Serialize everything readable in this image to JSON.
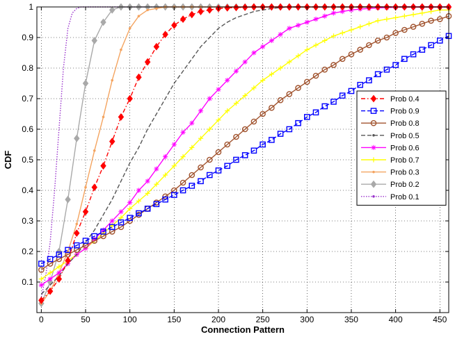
{
  "chart_data": {
    "type": "line",
    "xlabel": "Connection Pattern",
    "ylabel": "CDF",
    "xlim": [
      -5,
      460
    ],
    "ylim": [
      0,
      1
    ],
    "x_ticks": [
      0,
      50,
      100,
      150,
      200,
      250,
      300,
      350,
      400,
      450
    ],
    "y_ticks": [
      0.1,
      0.2,
      0.3,
      0.4,
      0.5,
      0.6,
      0.7,
      0.8,
      0.9,
      1
    ],
    "grid": "dotted",
    "legend_position": "right",
    "series": [
      {
        "name": "Prob 0.4",
        "color": "#ff0000",
        "dash": "dashdot",
        "marker": "diamond",
        "marker_fill": "#ff0000",
        "mark_step": 1,
        "x": [
          0,
          10,
          20,
          30,
          40,
          50,
          60,
          70,
          80,
          90,
          100,
          110,
          120,
          130,
          140,
          150,
          160,
          170,
          180,
          190,
          200,
          210,
          220,
          230,
          240,
          250,
          260,
          270,
          280,
          290,
          300,
          310,
          320,
          330,
          340,
          350,
          360,
          370,
          380,
          390,
          400,
          410,
          420,
          430,
          440,
          450,
          460
        ],
        "y": [
          0.04,
          0.07,
          0.11,
          0.17,
          0.26,
          0.33,
          0.41,
          0.48,
          0.56,
          0.64,
          0.7,
          0.77,
          0.82,
          0.87,
          0.91,
          0.94,
          0.96,
          0.975,
          0.985,
          0.99,
          0.995,
          0.997,
          0.998,
          0.999,
          1,
          1,
          1,
          1,
          1,
          1,
          1,
          1,
          1,
          1,
          1,
          1,
          1,
          1,
          1,
          1,
          1,
          1,
          1,
          1,
          1,
          1,
          1
        ]
      },
      {
        "name": "Prob 0.9",
        "color": "#0000ff",
        "dash": "dash",
        "marker": "square",
        "marker_fill": "none",
        "mark_step": 1,
        "x": [
          0,
          10,
          20,
          30,
          40,
          50,
          60,
          70,
          80,
          90,
          100,
          110,
          120,
          130,
          140,
          150,
          160,
          170,
          180,
          190,
          200,
          210,
          220,
          230,
          240,
          250,
          260,
          270,
          280,
          290,
          300,
          310,
          320,
          330,
          340,
          350,
          360,
          370,
          380,
          390,
          400,
          410,
          420,
          430,
          440,
          450,
          460
        ],
        "y": [
          0.16,
          0.175,
          0.19,
          0.205,
          0.22,
          0.235,
          0.25,
          0.265,
          0.28,
          0.295,
          0.31,
          0.325,
          0.34,
          0.355,
          0.37,
          0.385,
          0.4,
          0.415,
          0.43,
          0.45,
          0.465,
          0.48,
          0.5,
          0.515,
          0.53,
          0.55,
          0.565,
          0.585,
          0.6,
          0.62,
          0.64,
          0.655,
          0.675,
          0.69,
          0.71,
          0.725,
          0.745,
          0.76,
          0.78,
          0.795,
          0.81,
          0.83,
          0.845,
          0.86,
          0.875,
          0.89,
          0.905
        ]
      },
      {
        "name": "Prob 0.8",
        "color": "#a0522d",
        "dash": "solid",
        "marker": "circle",
        "marker_fill": "none",
        "mark_step": 1,
        "x": [
          0,
          10,
          20,
          30,
          40,
          50,
          60,
          70,
          80,
          90,
          100,
          110,
          120,
          130,
          140,
          150,
          160,
          170,
          180,
          190,
          200,
          210,
          220,
          230,
          240,
          250,
          260,
          270,
          280,
          290,
          300,
          310,
          320,
          330,
          340,
          350,
          360,
          370,
          380,
          390,
          400,
          410,
          420,
          430,
          440,
          450,
          460
        ],
        "y": [
          0.14,
          0.16,
          0.175,
          0.19,
          0.205,
          0.22,
          0.235,
          0.25,
          0.265,
          0.28,
          0.3,
          0.32,
          0.34,
          0.36,
          0.38,
          0.4,
          0.425,
          0.45,
          0.475,
          0.5,
          0.525,
          0.55,
          0.575,
          0.6,
          0.625,
          0.65,
          0.67,
          0.695,
          0.715,
          0.735,
          0.755,
          0.775,
          0.795,
          0.81,
          0.83,
          0.845,
          0.86,
          0.875,
          0.89,
          0.9,
          0.915,
          0.925,
          0.935,
          0.945,
          0.955,
          0.96,
          0.97
        ]
      },
      {
        "name": "Prob 0.5",
        "color": "#555555",
        "dash": "dash",
        "marker": "point",
        "marker_fill": "#555555",
        "mark_step": 0,
        "x": [
          0,
          10,
          20,
          30,
          40,
          50,
          60,
          70,
          80,
          90,
          100,
          110,
          120,
          130,
          140,
          150,
          160,
          170,
          180,
          190,
          200,
          210,
          220,
          230,
          240,
          250,
          260,
          270,
          280,
          290,
          300,
          310,
          320,
          330,
          340,
          350,
          360,
          370,
          380,
          390,
          400,
          410,
          420,
          430,
          440,
          450,
          460
        ],
        "y": [
          0.06,
          0.09,
          0.12,
          0.16,
          0.19,
          0.23,
          0.27,
          0.32,
          0.37,
          0.43,
          0.49,
          0.54,
          0.6,
          0.65,
          0.7,
          0.75,
          0.79,
          0.83,
          0.87,
          0.9,
          0.93,
          0.95,
          0.965,
          0.975,
          0.985,
          0.99,
          0.995,
          0.998,
          1,
          1,
          1,
          1,
          1,
          1,
          1,
          1,
          1,
          1,
          1,
          1,
          1,
          1,
          1,
          1,
          1,
          1,
          1
        ]
      },
      {
        "name": "Prob 0.6",
        "color": "#ff00ff",
        "dash": "solid",
        "marker": "star",
        "marker_fill": "#ff00ff",
        "mark_step": 1,
        "x": [
          0,
          10,
          20,
          30,
          40,
          50,
          60,
          70,
          80,
          90,
          100,
          110,
          120,
          130,
          140,
          150,
          160,
          170,
          180,
          190,
          200,
          210,
          220,
          230,
          240,
          250,
          260,
          270,
          280,
          290,
          300,
          310,
          320,
          330,
          340,
          350,
          360,
          370,
          380,
          390,
          400,
          410,
          420,
          430,
          440,
          450,
          460
        ],
        "y": [
          0.09,
          0.11,
          0.13,
          0.16,
          0.19,
          0.21,
          0.24,
          0.27,
          0.3,
          0.33,
          0.36,
          0.4,
          0.43,
          0.47,
          0.51,
          0.55,
          0.59,
          0.62,
          0.66,
          0.7,
          0.73,
          0.76,
          0.79,
          0.82,
          0.85,
          0.87,
          0.89,
          0.91,
          0.93,
          0.94,
          0.95,
          0.96,
          0.97,
          0.98,
          0.985,
          0.99,
          0.993,
          0.995,
          0.997,
          0.998,
          0.999,
          1,
          1,
          1,
          1,
          1,
          1
        ]
      },
      {
        "name": "Prob 0.7",
        "color": "#ffff00",
        "dash": "solid",
        "marker": "plus",
        "marker_fill": "#ffff00",
        "mark_step": 1,
        "x": [
          0,
          10,
          20,
          30,
          40,
          50,
          60,
          70,
          80,
          90,
          100,
          110,
          120,
          130,
          140,
          150,
          160,
          170,
          180,
          190,
          200,
          210,
          220,
          230,
          240,
          250,
          260,
          270,
          280,
          290,
          300,
          310,
          320,
          330,
          340,
          350,
          360,
          370,
          380,
          390,
          400,
          410,
          420,
          430,
          440,
          450,
          460
        ],
        "y": [
          0.11,
          0.13,
          0.15,
          0.17,
          0.19,
          0.21,
          0.235,
          0.26,
          0.285,
          0.31,
          0.34,
          0.365,
          0.39,
          0.42,
          0.45,
          0.48,
          0.51,
          0.54,
          0.57,
          0.6,
          0.63,
          0.66,
          0.685,
          0.71,
          0.735,
          0.76,
          0.78,
          0.8,
          0.82,
          0.84,
          0.86,
          0.875,
          0.89,
          0.905,
          0.915,
          0.925,
          0.935,
          0.945,
          0.955,
          0.96,
          0.965,
          0.97,
          0.975,
          0.98,
          0.985,
          0.99,
          0.99
        ]
      },
      {
        "name": "Prob 0.3",
        "color": "#f4a460",
        "dash": "solid",
        "marker": "point",
        "marker_fill": "#f4a460",
        "mark_step": 1,
        "x": [
          0,
          10,
          20,
          30,
          40,
          50,
          60,
          70,
          80,
          90,
          100,
          110,
          120,
          130,
          140,
          150,
          160,
          170,
          180,
          190,
          200,
          210,
          220,
          230,
          240,
          250,
          260,
          270,
          280,
          290,
          300,
          310,
          320,
          330,
          340,
          350,
          360,
          370,
          380,
          390,
          400,
          410,
          420,
          430,
          440,
          450,
          460
        ],
        "y": [
          0.03,
          0.07,
          0.13,
          0.2,
          0.29,
          0.41,
          0.53,
          0.64,
          0.76,
          0.86,
          0.93,
          0.97,
          0.99,
          0.995,
          1,
          1,
          1,
          1,
          1,
          1,
          1,
          1,
          1,
          1,
          1,
          1,
          1,
          1,
          1,
          1,
          1,
          1,
          1,
          1,
          1,
          1,
          1,
          1,
          1,
          1,
          1,
          1,
          1,
          1,
          1,
          1,
          1
        ]
      },
      {
        "name": "Prob 0.2",
        "color": "#a9a9a9",
        "dash": "solid",
        "marker": "diamond",
        "marker_fill": "#a9a9a9",
        "mark_step": 1,
        "x": [
          0,
          10,
          20,
          30,
          40,
          50,
          60,
          70,
          80,
          90,
          100,
          110,
          120,
          130,
          140,
          150,
          160,
          170,
          180,
          190,
          200,
          210,
          220,
          230,
          240,
          250,
          260,
          270,
          280,
          290,
          300,
          310,
          320,
          330,
          340,
          350,
          360,
          370,
          380,
          390,
          400,
          410,
          420,
          430,
          440,
          450,
          460
        ],
        "y": [
          0.03,
          0.1,
          0.2,
          0.37,
          0.57,
          0.75,
          0.89,
          0.95,
          0.99,
          1,
          1,
          1,
          1,
          1,
          1,
          1,
          1,
          1,
          1,
          1,
          1,
          1,
          1,
          1,
          1,
          1,
          1,
          1,
          1,
          1,
          1,
          1,
          1,
          1,
          1,
          1,
          1,
          1,
          1,
          1,
          1,
          1,
          1,
          1,
          1,
          1,
          1
        ]
      },
      {
        "name": "Prob 0.1",
        "color": "#9932cc",
        "dash": "dot",
        "marker": "point",
        "marker_fill": "#9932cc",
        "mark_step": 0,
        "x": [
          0,
          5,
          10,
          15,
          20,
          25,
          30,
          35,
          40,
          45,
          50,
          60,
          70,
          80,
          90,
          100,
          150,
          200,
          250,
          300,
          350,
          400,
          460
        ],
        "y": [
          0.05,
          0.12,
          0.23,
          0.4,
          0.6,
          0.8,
          0.93,
          0.98,
          0.995,
          1,
          1,
          1,
          1,
          1,
          1,
          1,
          1,
          1,
          1,
          1,
          1,
          1,
          1
        ]
      }
    ]
  }
}
